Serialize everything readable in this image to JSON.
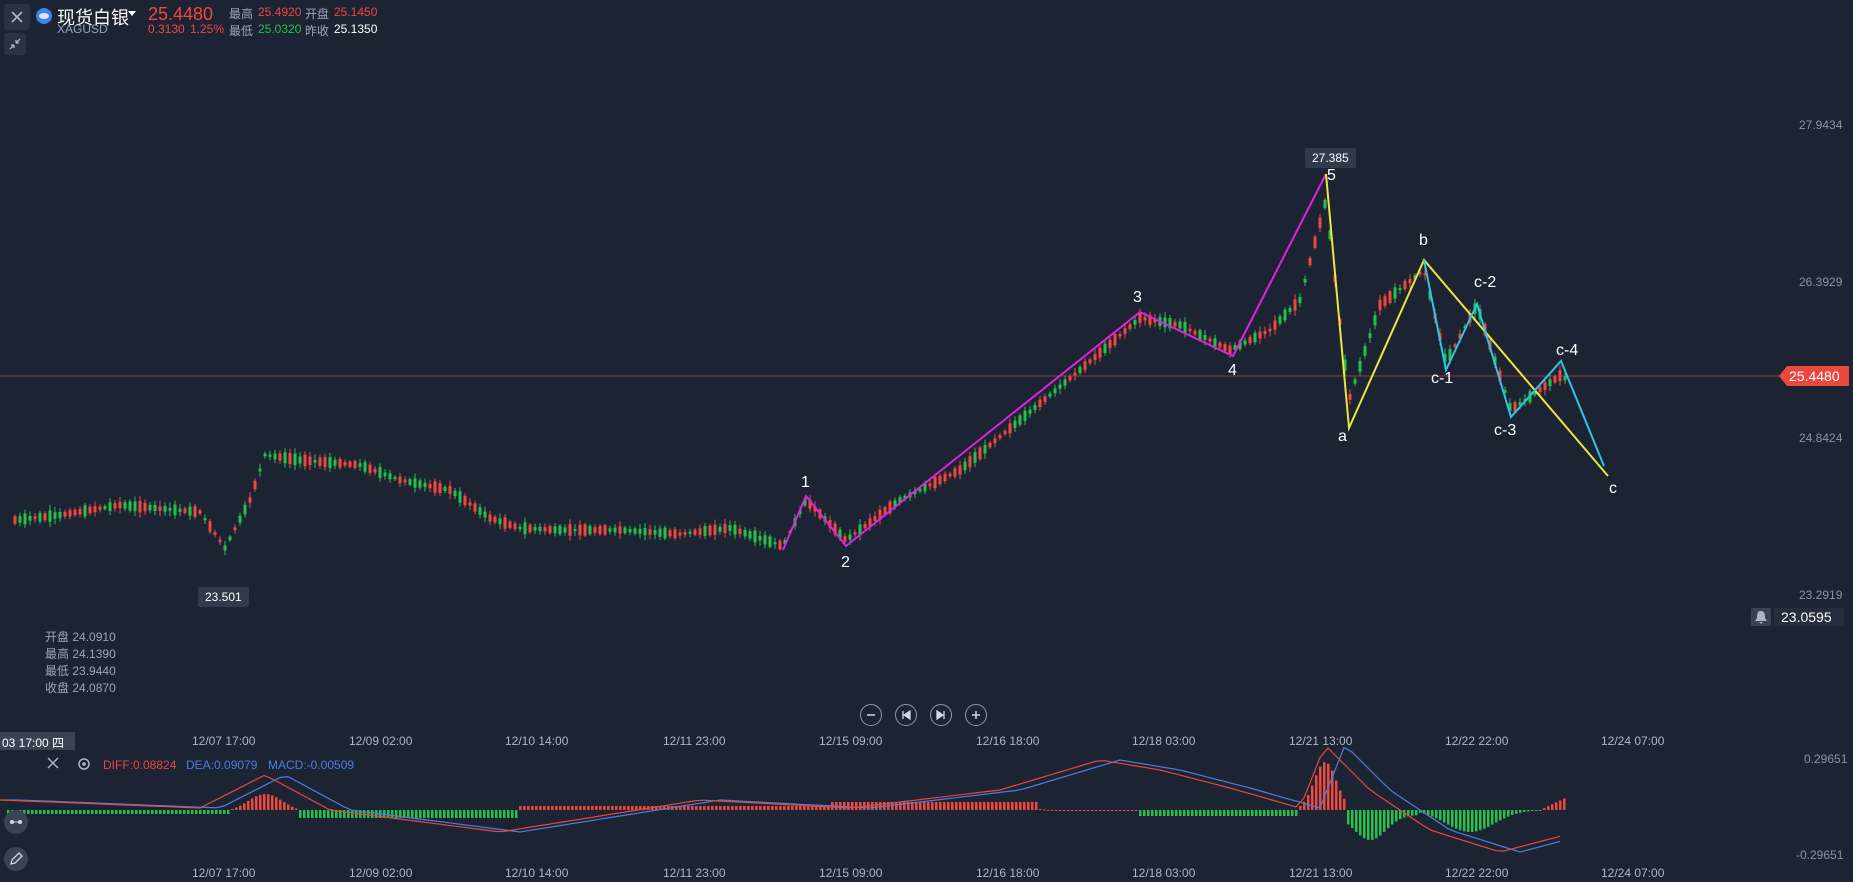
{
  "header": {
    "title": "现货白银",
    "symbol": "XAGUSD",
    "price": "25.4480",
    "change": "0.3130",
    "change_pct": "1.25%",
    "high_label": "最高",
    "high": "25.4920",
    "open_label": "开盘",
    "open": "25.1450",
    "low_label": "最低",
    "low": "25.0320",
    "prev_close_label": "昨收",
    "prev_close": "25.1350"
  },
  "price_axis": [
    "27.9434",
    "26.3929",
    "24.8424",
    "23.2919"
  ],
  "current_price": "25.4480",
  "alert_price": "23.0595",
  "peak_badge": "27.385",
  "trough_badge": "23.501",
  "ohlc": {
    "open_label": "开盘",
    "open": "24.0910",
    "high_label": "最高",
    "high": "24.1390",
    "low_label": "最低",
    "low": "23.9440",
    "close_label": "收盘",
    "close": "24.0870"
  },
  "time_axis": [
    "12/07 17:00",
    "12/09 02:00",
    "12/10 14:00",
    "12/11 23:00",
    "12/15 09:00",
    "12/16 18:00",
    "12/18 03:00",
    "12/21 13:00",
    "12/22 22:00",
    "12/24 07:00"
  ],
  "crosshair_time": "03 17:00 四",
  "wave_labels": {
    "w1": "1",
    "w2": "2",
    "w3": "3",
    "w4": "4",
    "w5": "5",
    "a": "a",
    "b": "b",
    "c": "c",
    "c1": "c-1",
    "c2": "c-2",
    "c3": "c-3",
    "c4": "c-4"
  },
  "macd": {
    "diff": "DIFF:0.08824",
    "dea": "DEA:0.09079",
    "macd": "MACD:-0.00509",
    "axis_top": "0.29651",
    "axis_bottom": "-0.29651"
  },
  "colors": {
    "up": "#f0483e",
    "down": "#26c14a",
    "impulse": "#e021e0",
    "correction": "#e8e83a",
    "subwave": "#2ec4e6",
    "diff_line": "#e8483e",
    "dea_line": "#4a7fe0"
  },
  "icons": {
    "close": "close-icon",
    "shrink": "shrink-icon",
    "zoom_out": "minus-icon",
    "to_start": "skip-start-icon",
    "to_end": "skip-end-icon",
    "zoom_in": "plus-icon",
    "bell": "bell-icon",
    "settings": "gear-icon",
    "pencil": "pencil-icon",
    "draw": "draw-tool-icon"
  }
}
